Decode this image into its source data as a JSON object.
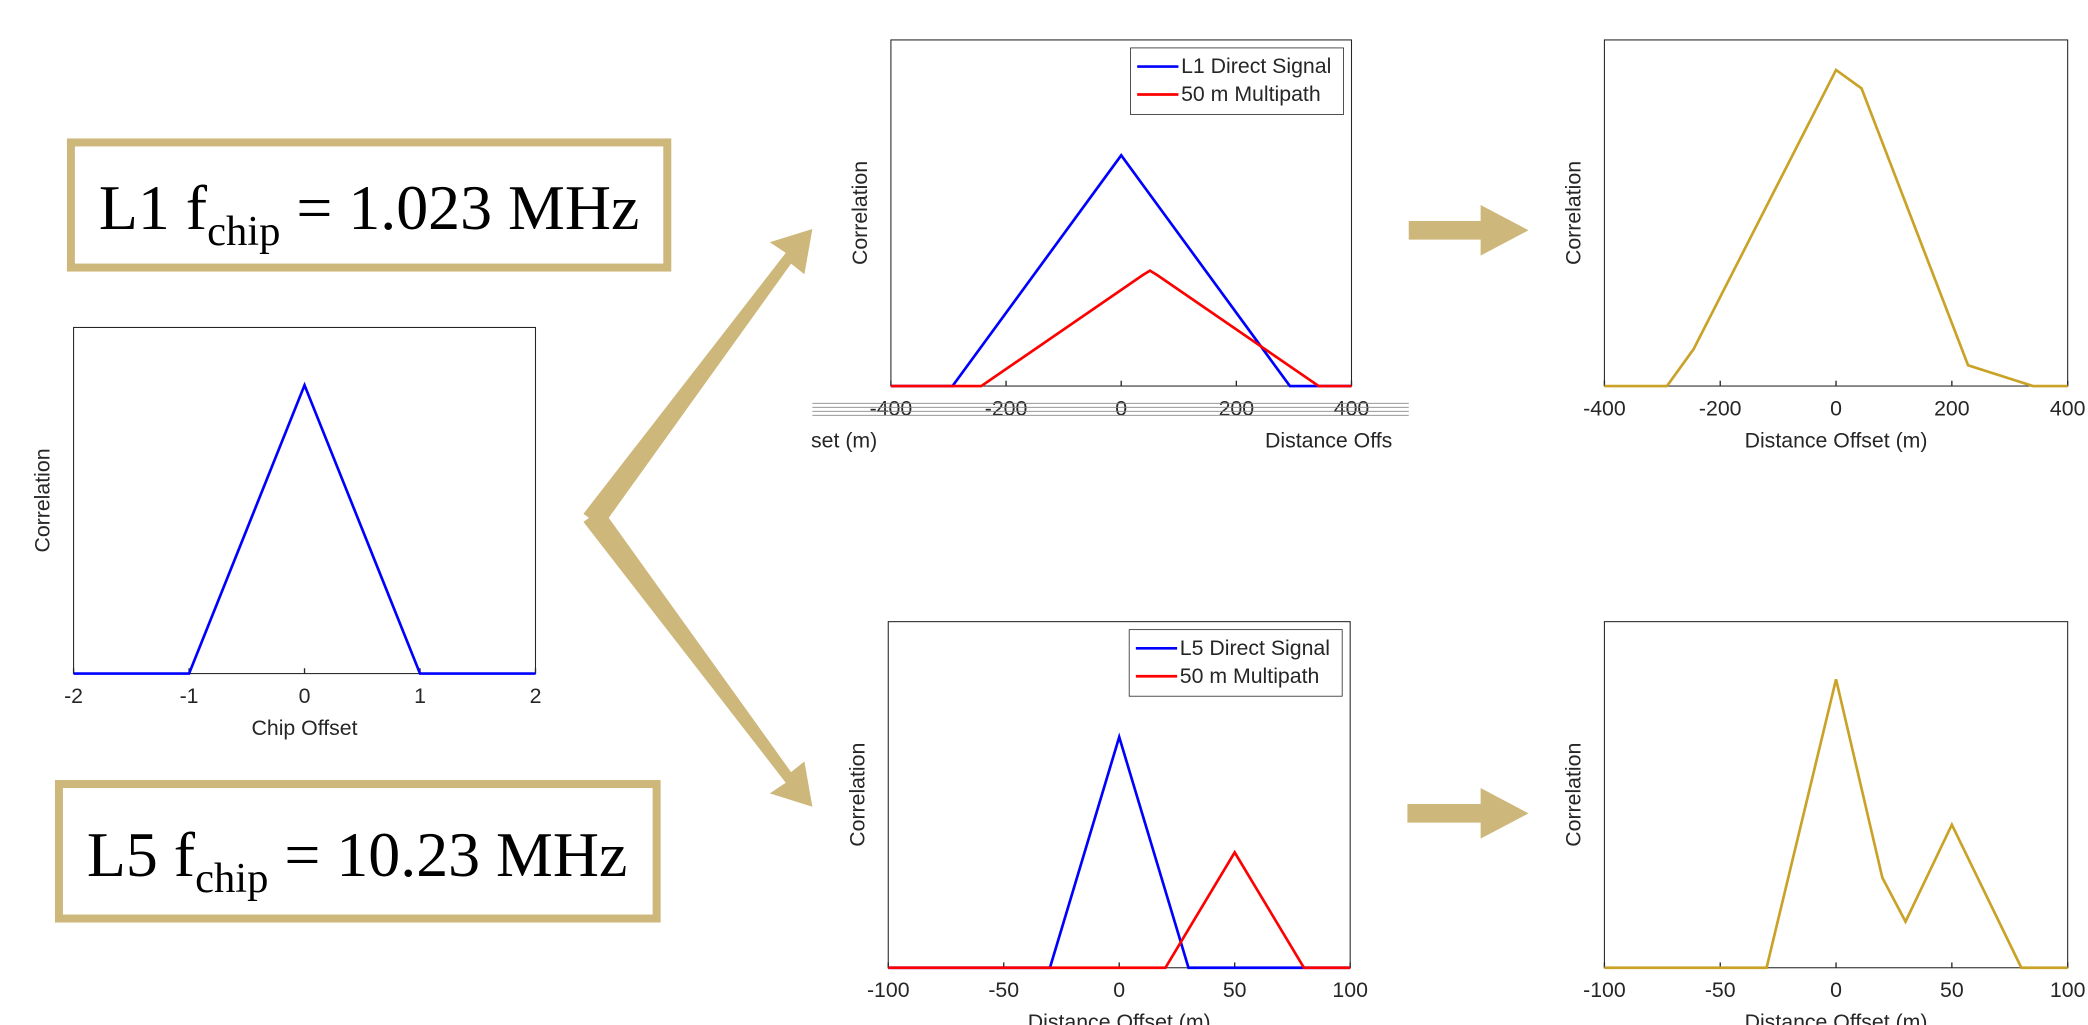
{
  "boxes": [
    {
      "main": "L1 f",
      "sub": "chip",
      "rest": " = 1.023 MHz"
    },
    {
      "main": "L5 f",
      "sub": "chip",
      "rest": " = 10.23 MHz"
    }
  ],
  "chart_data": [
    {
      "type": "line",
      "xlabel": "Chip Offset",
      "ylabel": "Correlation",
      "xlim": [
        -2,
        2
      ],
      "ylim": [
        0,
        1.2
      ],
      "xticks": [
        -2,
        -1,
        0,
        1,
        2
      ],
      "series": [
        {
          "color": "#0000ff",
          "x": [
            -2,
            -1,
            0,
            1,
            2
          ],
          "values": [
            0,
            0,
            1,
            0,
            0
          ]
        }
      ]
    },
    {
      "type": "line",
      "xlabel": [
        "set (m)",
        "Distance Offs"
      ],
      "ylabel": "Correlation",
      "xlim": [
        -400,
        400
      ],
      "ylim": [
        0,
        1.5
      ],
      "xticks": [
        -400,
        -200,
        0,
        200,
        400
      ],
      "legend": "upper right",
      "series": [
        {
          "name": "L1 Direct Signal",
          "color": "#0000ff",
          "x": [
            -400,
            -293,
            0,
            293,
            400
          ],
          "values": [
            0,
            0,
            1,
            0,
            0
          ]
        },
        {
          "name": "50 m Multipath",
          "color": "#ff0000",
          "x": [
            -400,
            -243,
            37,
            50,
            63,
            343,
            400
          ],
          "values": [
            0,
            0,
            0.48,
            0.5,
            0.48,
            0,
            0
          ]
        }
      ]
    },
    {
      "type": "line",
      "xlabel": "Distance Offset (m)",
      "ylabel": "Correlation",
      "xlim": [
        -400,
        400
      ],
      "ylim": [
        0,
        1.5
      ],
      "xticks": [
        -400,
        -200,
        0,
        200,
        400
      ],
      "series": [
        {
          "color": "#c9a227",
          "x": [
            -400,
            -292,
            -246,
            0,
            44,
            228,
            340,
            400
          ],
          "values": [
            0,
            0,
            0.16,
            1.37,
            1.29,
            0.09,
            0,
            0
          ]
        }
      ]
    },
    {
      "type": "line",
      "xlabel": "Distance Offset (m)",
      "ylabel": "Correlation",
      "xlim": [
        -100,
        100
      ],
      "ylim": [
        0,
        1.5
      ],
      "xticks": [
        -100,
        -50,
        0,
        50,
        100
      ],
      "legend": "upper right",
      "series": [
        {
          "name": "L5 Direct Signal",
          "color": "#0000ff",
          "x": [
            -100,
            -30,
            0,
            30,
            100
          ],
          "values": [
            0,
            0,
            1,
            0,
            0
          ]
        },
        {
          "name": "50 m Multipath",
          "color": "#ff0000",
          "x": [
            -100,
            20,
            50,
            80,
            100
          ],
          "values": [
            0,
            0,
            0.5,
            0,
            0
          ]
        }
      ]
    },
    {
      "type": "line",
      "xlabel": "Distance Offset (m)",
      "ylabel": "Correlation",
      "xlim": [
        -100,
        100
      ],
      "ylim": [
        0,
        1.5
      ],
      "xticks": [
        -100,
        -50,
        0,
        50,
        100
      ],
      "series": [
        {
          "color": "#c9a227",
          "x": [
            -100,
            -30,
            0,
            20,
            30,
            50,
            80,
            100
          ],
          "values": [
            0,
            0,
            1.25,
            0.39,
            0.2,
            0.62,
            0,
            0
          ]
        }
      ]
    }
  ]
}
